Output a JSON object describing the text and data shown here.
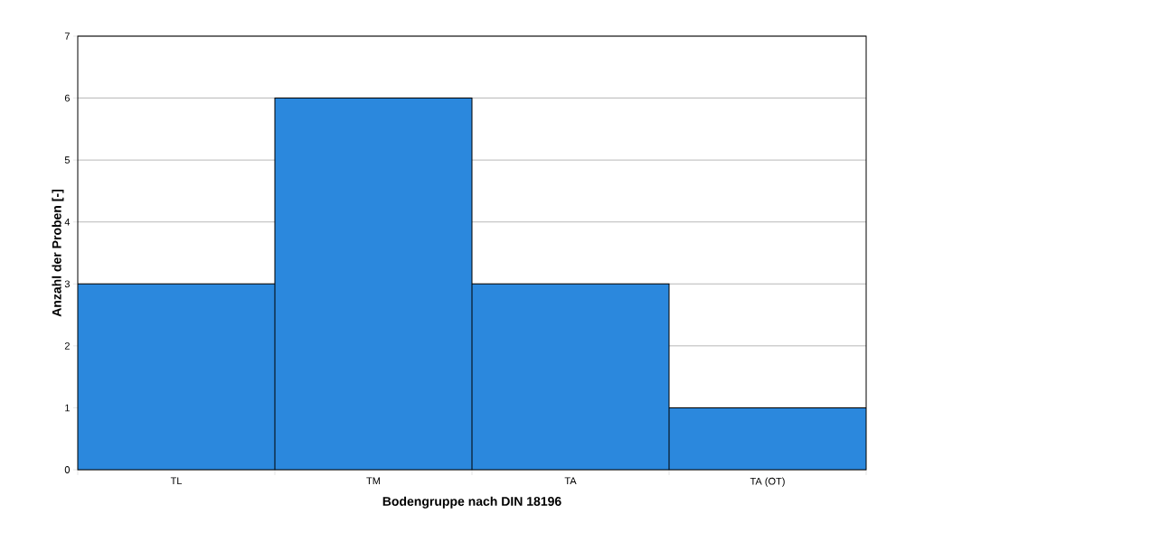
{
  "chart_data": {
    "type": "bar",
    "xlabel": "Bodengruppe nach DIN 18196",
    "ylabel": "Anzahl der Proben [-]",
    "categories": [
      "TL",
      "TM",
      "TA",
      "TA (OT)"
    ],
    "values": [
      3,
      6,
      3,
      1
    ],
    "color": "#2b88dd",
    "ylim": [
      0,
      7
    ],
    "yticks": [
      0,
      1,
      2,
      3,
      4,
      5,
      6,
      7
    ],
    "grid": "y"
  }
}
